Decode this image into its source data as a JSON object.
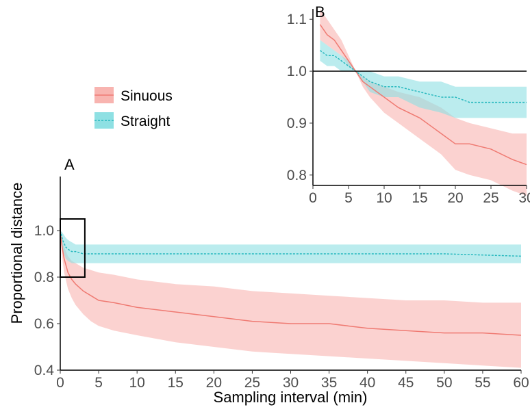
{
  "colors": {
    "sinuous_line": "#ef7a72",
    "sinuous_band": "#f8b4b0",
    "straight_line": "#26b8be",
    "straight_band": "#8ee0e3"
  },
  "legend": {
    "items": [
      {
        "label": "Sinuous",
        "line_style": "solid"
      },
      {
        "label": "Straight",
        "line_style": "dashed"
      }
    ]
  },
  "chart_data": [
    {
      "panel": "A",
      "type": "line",
      "xlabel": "Sampling interval (min)",
      "ylabel": "Proportional distance",
      "xlim": [
        0,
        60
      ],
      "ylim": [
        0.4,
        1.1
      ],
      "xticks": [
        0,
        5,
        10,
        15,
        20,
        25,
        30,
        35,
        40,
        45,
        50,
        55,
        60
      ],
      "yticks": [
        0.4,
        0.6,
        0.8,
        1.0
      ],
      "ytick_labels": [
        "0.4",
        "0.6",
        "0.8",
        "1.0"
      ],
      "inset_box": {
        "x": [
          0,
          3.2
        ],
        "y": [
          0.8,
          1.05
        ]
      },
      "series": [
        {
          "name": "Sinuous",
          "x": [
            0,
            0.2,
            0.5,
            1,
            1.5,
            2,
            3,
            4,
            5,
            7,
            10,
            15,
            20,
            25,
            30,
            35,
            40,
            45,
            50,
            55,
            60
          ],
          "y": [
            1.0,
            0.94,
            0.88,
            0.82,
            0.79,
            0.77,
            0.74,
            0.72,
            0.7,
            0.69,
            0.67,
            0.65,
            0.63,
            0.61,
            0.6,
            0.6,
            0.58,
            0.57,
            0.56,
            0.56,
            0.55
          ],
          "lower": [
            1.0,
            0.9,
            0.82,
            0.75,
            0.71,
            0.68,
            0.64,
            0.61,
            0.59,
            0.57,
            0.55,
            0.52,
            0.5,
            0.48,
            0.47,
            0.46,
            0.45,
            0.44,
            0.43,
            0.42,
            0.41
          ],
          "upper": [
            1.0,
            0.98,
            0.93,
            0.89,
            0.87,
            0.86,
            0.84,
            0.83,
            0.82,
            0.81,
            0.79,
            0.77,
            0.76,
            0.74,
            0.73,
            0.72,
            0.71,
            0.7,
            0.7,
            0.69,
            0.69
          ]
        },
        {
          "name": "Straight",
          "x": [
            0,
            0.3,
            0.7,
            1,
            1.5,
            2,
            3,
            5,
            10,
            20,
            30,
            40,
            50,
            60
          ],
          "y": [
            1.0,
            0.96,
            0.93,
            0.92,
            0.91,
            0.91,
            0.9,
            0.9,
            0.9,
            0.9,
            0.9,
            0.9,
            0.9,
            0.89
          ],
          "lower": [
            1.0,
            0.92,
            0.88,
            0.87,
            0.86,
            0.86,
            0.86,
            0.86,
            0.86,
            0.86,
            0.86,
            0.86,
            0.86,
            0.86
          ],
          "upper": [
            1.0,
            0.99,
            0.97,
            0.96,
            0.95,
            0.94,
            0.94,
            0.94,
            0.94,
            0.94,
            0.94,
            0.94,
            0.94,
            0.94
          ]
        }
      ]
    },
    {
      "panel": "B",
      "type": "line",
      "xlabel": "",
      "ylabel": "",
      "xlim": [
        0,
        30
      ],
      "ylim": [
        0.78,
        1.12
      ],
      "xticks": [
        0,
        5,
        10,
        15,
        20,
        25,
        30
      ],
      "yticks": [
        0.8,
        0.9,
        1.0,
        1.1
      ],
      "ytick_labels": [
        "0.8",
        "0.9",
        "1.0",
        "1.1"
      ],
      "reference_line": 1.0,
      "series": [
        {
          "name": "Sinuous",
          "x": [
            1,
            2,
            3,
            4,
            5,
            6,
            7,
            8,
            10,
            12,
            15,
            18,
            20,
            22,
            25,
            28,
            30
          ],
          "y": [
            1.09,
            1.07,
            1.06,
            1.04,
            1.02,
            1.0,
            0.98,
            0.97,
            0.95,
            0.93,
            0.91,
            0.88,
            0.86,
            0.86,
            0.85,
            0.83,
            0.82
          ],
          "lower": [
            1.06,
            1.05,
            1.04,
            1.03,
            1.01,
            1.0,
            0.97,
            0.95,
            0.92,
            0.9,
            0.87,
            0.84,
            0.81,
            0.8,
            0.79,
            0.77,
            0.76
          ],
          "upper": [
            1.12,
            1.1,
            1.08,
            1.06,
            1.03,
            1.0,
            0.99,
            0.98,
            0.97,
            0.96,
            0.95,
            0.93,
            0.91,
            0.9,
            0.89,
            0.88,
            0.88
          ]
        },
        {
          "name": "Straight",
          "x": [
            1,
            2,
            3,
            4,
            5,
            6,
            7,
            8,
            10,
            12,
            15,
            18,
            20,
            22,
            25,
            28,
            30
          ],
          "y": [
            1.04,
            1.03,
            1.03,
            1.02,
            1.01,
            1.0,
            0.99,
            0.98,
            0.97,
            0.97,
            0.96,
            0.95,
            0.95,
            0.94,
            0.94,
            0.94,
            0.94
          ],
          "lower": [
            1.02,
            1.01,
            1.01,
            1.0,
            1.0,
            1.0,
            0.98,
            0.96,
            0.95,
            0.95,
            0.93,
            0.92,
            0.91,
            0.91,
            0.91,
            0.91,
            0.91
          ],
          "upper": [
            1.06,
            1.05,
            1.04,
            1.03,
            1.02,
            1.0,
            1.0,
            1.0,
            0.99,
            0.99,
            0.98,
            0.98,
            0.97,
            0.97,
            0.97,
            0.97,
            0.97
          ]
        }
      ]
    }
  ]
}
